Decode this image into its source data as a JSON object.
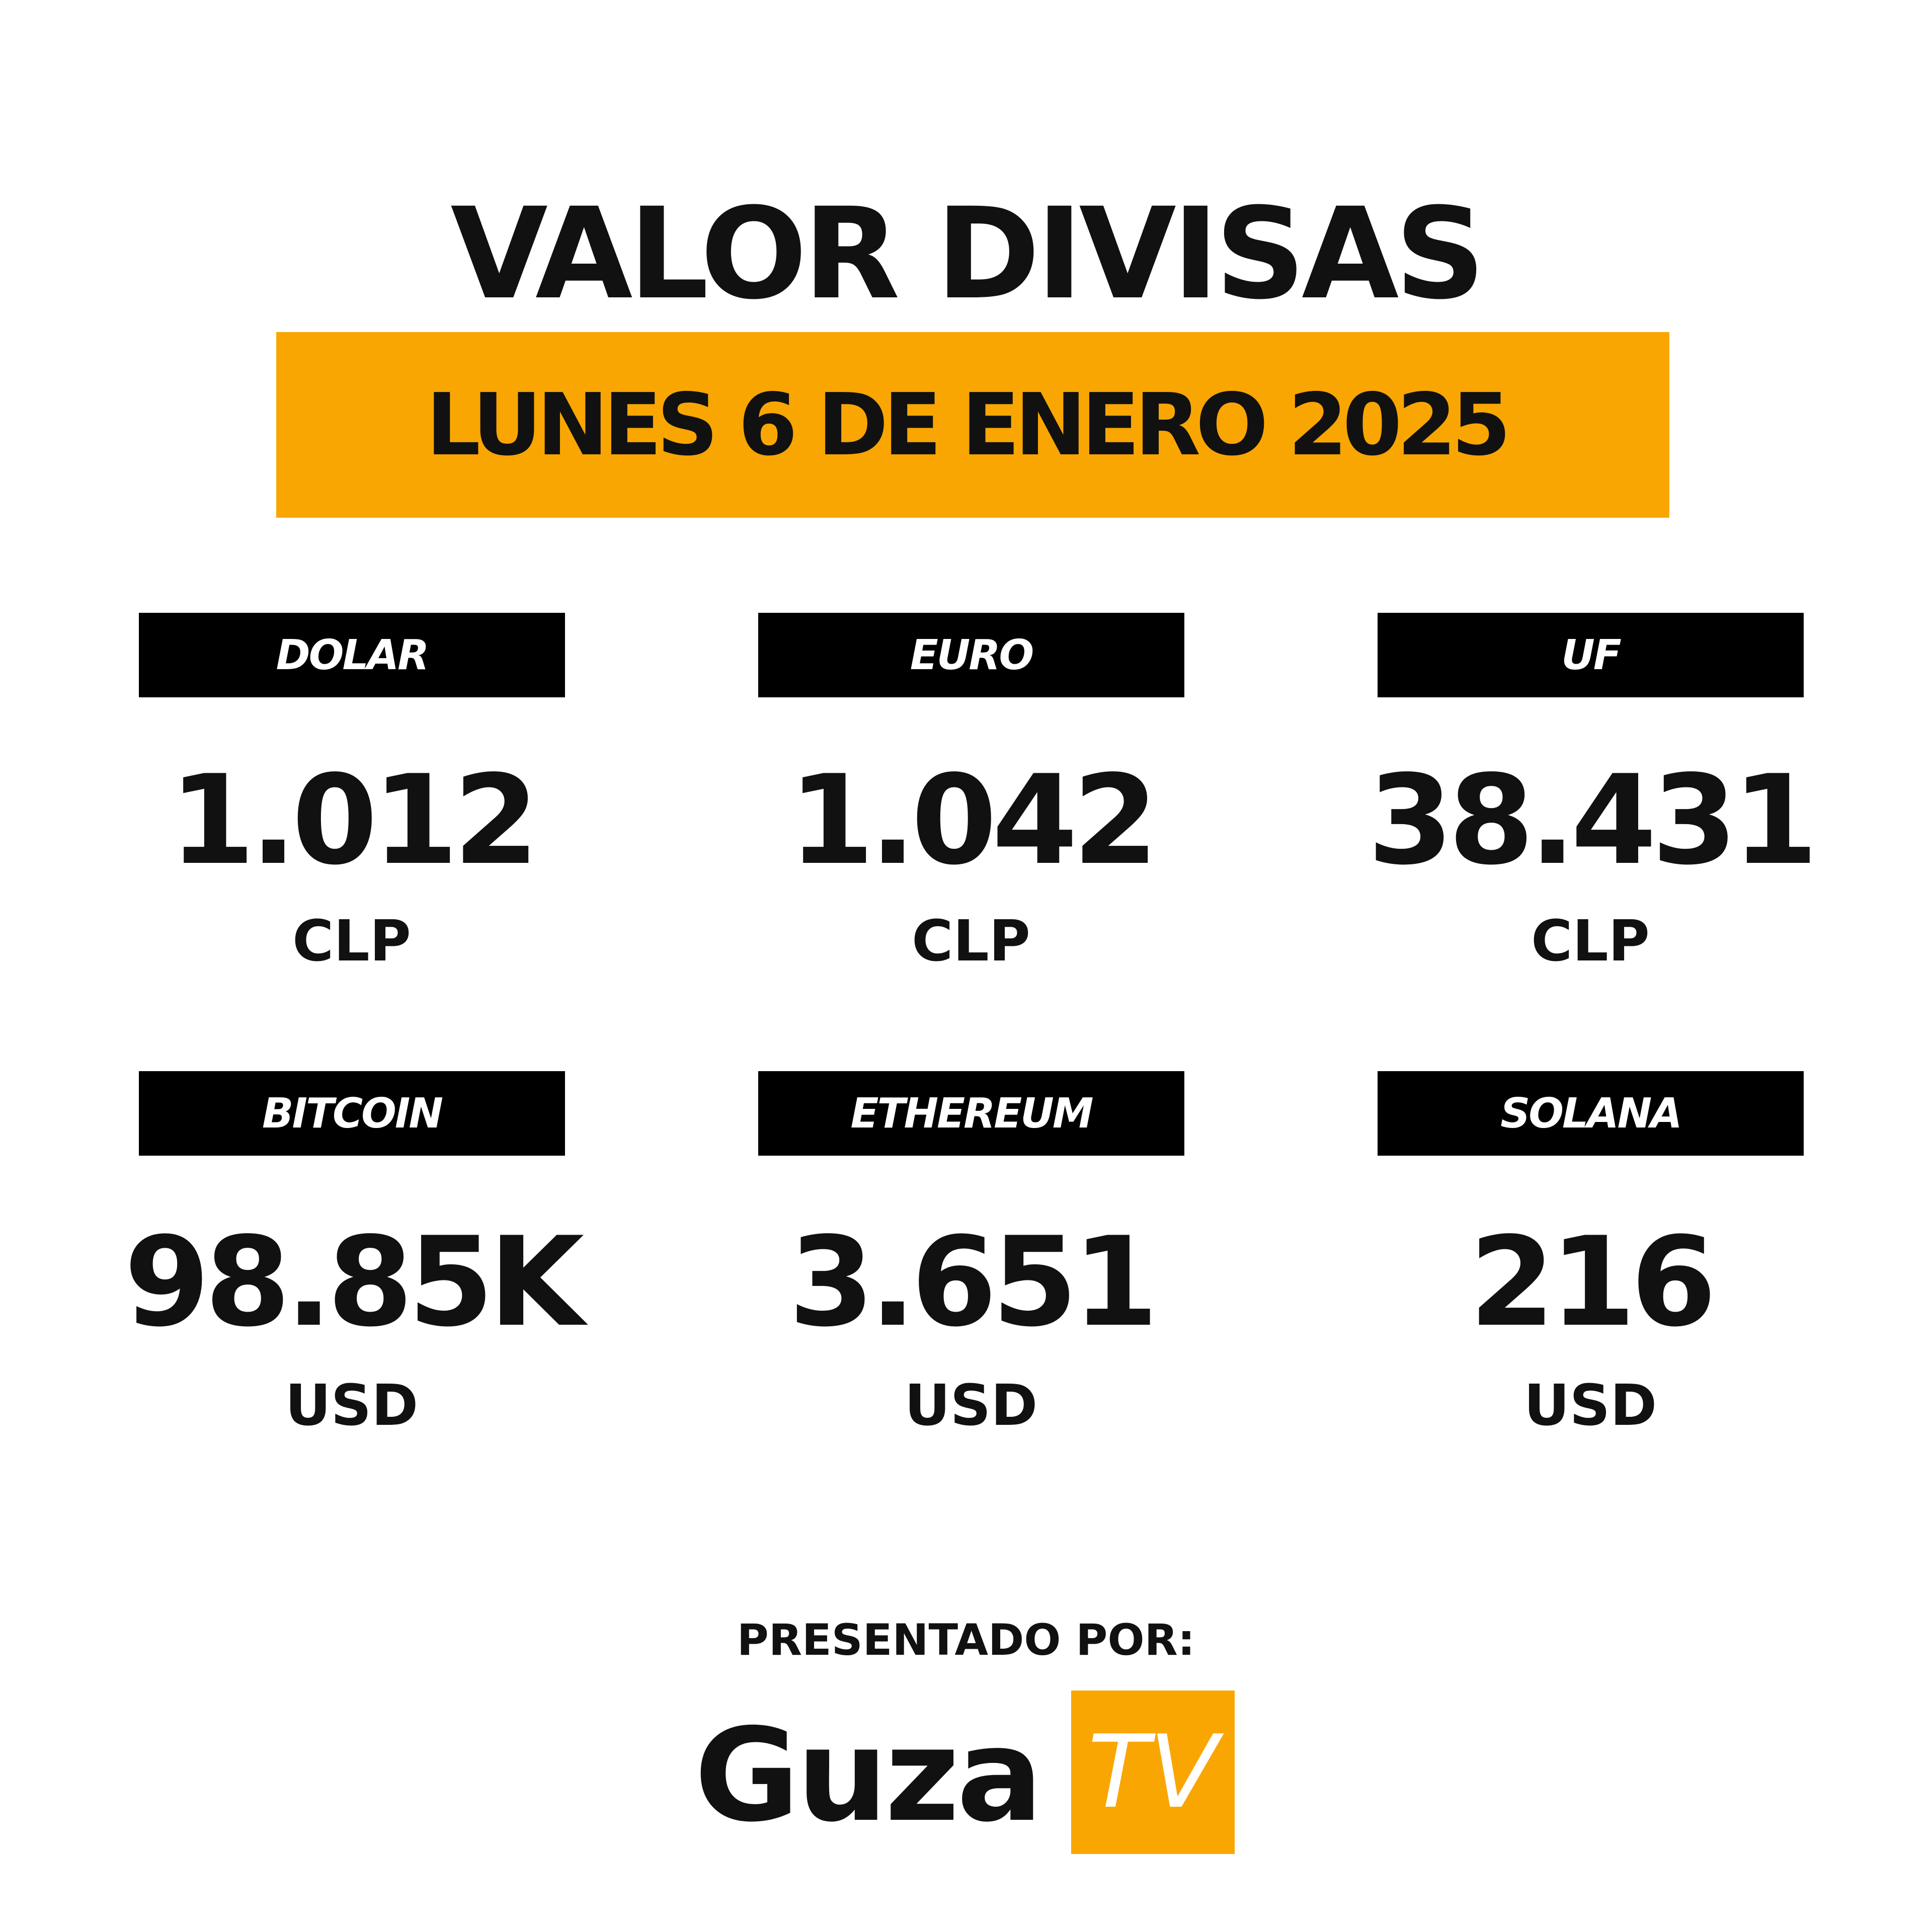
{
  "header": {
    "title": "VALOR DIVISAS",
    "date": "LUNES 6 DE ENERO 2025"
  },
  "items": [
    {
      "name": "DOLAR",
      "value": "1.012",
      "unit": "CLP"
    },
    {
      "name": "EURO",
      "value": "1.042",
      "unit": "CLP"
    },
    {
      "name": "UF",
      "value": "38.431",
      "unit": "CLP"
    },
    {
      "name": "BITCOIN",
      "value": "98.85K",
      "unit": "USD"
    },
    {
      "name": "ETHEREUM",
      "value": "3.651",
      "unit": "USD"
    },
    {
      "name": "SOLANA",
      "value": "216",
      "unit": "USD"
    }
  ],
  "footer": {
    "presented_by": "PRESENTADO POR:",
    "logo_text": "Guza",
    "logo_box_text": "TV"
  }
}
